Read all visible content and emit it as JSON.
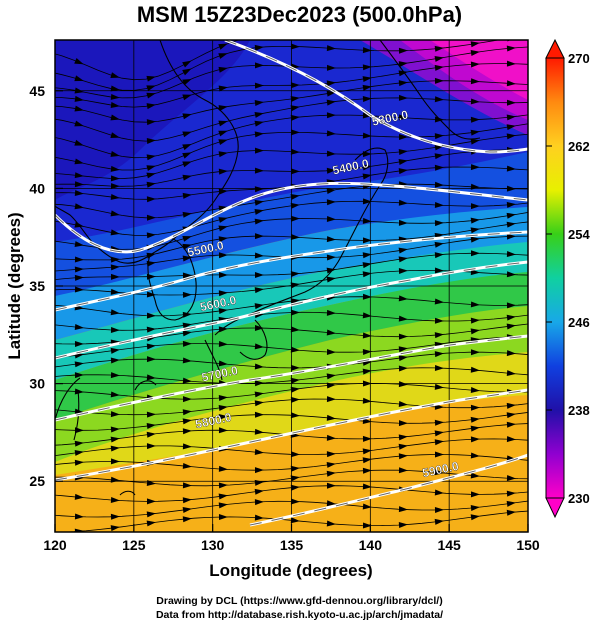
{
  "title": "MSM 15Z23Dec2023 (500.0hPa)",
  "credits": {
    "line1": "Drawing by DCL (https://www.gfd-dennou.org/library/dcl/)",
    "line2": "Data from http://database.rish.kyoto-u.ac.jp/arch/jmadata/"
  },
  "map": {
    "xlabel": "Longitude (degrees)",
    "ylabel": "Latitude  (degrees)",
    "xlim": [
      120,
      150
    ],
    "ylim": [
      22.4,
      47.6
    ],
    "xticks": [
      {
        "value": 120,
        "label": "120"
      },
      {
        "value": 125,
        "label": "125"
      },
      {
        "value": 130,
        "label": "130"
      },
      {
        "value": 135,
        "label": "135"
      },
      {
        "value": 140,
        "label": "140"
      },
      {
        "value": 145,
        "label": "145"
      },
      {
        "value": 150,
        "label": "150"
      }
    ],
    "yticks": [
      {
        "value": 25,
        "label": "25"
      },
      {
        "value": 30,
        "label": "30"
      },
      {
        "value": 35,
        "label": "35"
      },
      {
        "value": 40,
        "label": "40"
      },
      {
        "value": 45,
        "label": "45"
      }
    ],
    "contour_labels": [
      {
        "label": "5300.0",
        "lon": 141.3,
        "lat": 43.4
      },
      {
        "label": "5400.0",
        "lon": 138.8,
        "lat": 40.9
      },
      {
        "label": "5500.0",
        "lon": 129.6,
        "lat": 36.7
      },
      {
        "label": "5600.0",
        "lon": 130.4,
        "lat": 33.9
      },
      {
        "label": "5700.0",
        "lon": 130.5,
        "lat": 30.3
      },
      {
        "label": "5800.0",
        "lon": 130.1,
        "lat": 27.9
      },
      {
        "label": "5900.0",
        "lon": 144.5,
        "lat": 25.4
      }
    ]
  },
  "colorbar": {
    "labels": [
      "270",
      "262",
      "254",
      "246",
      "238",
      "230"
    ],
    "values": [
      270,
      262,
      254,
      246,
      238,
      230
    ],
    "range": [
      230,
      270
    ],
    "colors_top_to_bottom": [
      "#ff1a00",
      "#ff8a10",
      "#ffd020",
      "#e8f000",
      "#38d018",
      "#10d0a0",
      "#18a8e8",
      "#1040e0",
      "#2010a8",
      "#9000d0",
      "#ff00c8"
    ]
  },
  "colors": {
    "contour": "#ffffff",
    "streamline": "#000000",
    "coastline": "#000000"
  }
}
